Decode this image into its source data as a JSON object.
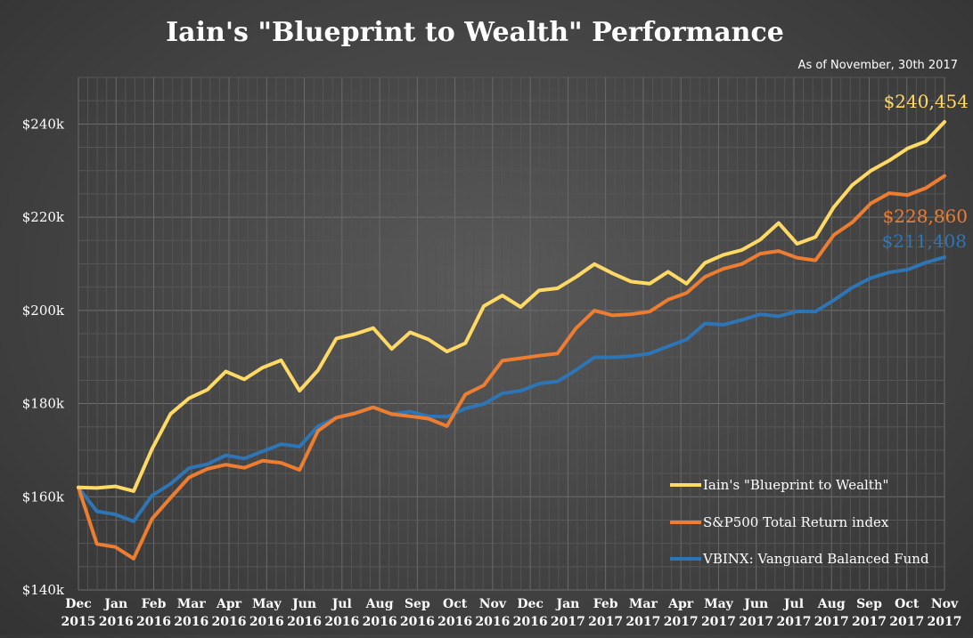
{
  "chart_data": {
    "type": "line",
    "title": "Iain's \"Blueprint to Wealth\" Performance",
    "subtitle": "As of November, 30th 2017",
    "xlabel": "",
    "ylabel": "",
    "ylim": [
      140000,
      250000
    ],
    "y_ticks": [
      140000,
      160000,
      180000,
      200000,
      220000,
      240000
    ],
    "y_tick_labels": [
      "$140k",
      "$160k",
      "$180k",
      "$200k",
      "$220k",
      "$240k"
    ],
    "x_tick_labels": [
      [
        "Dec",
        "2015"
      ],
      [
        "Jan",
        "2016"
      ],
      [
        "Feb",
        "2016"
      ],
      [
        "Mar",
        "2016"
      ],
      [
        "Apr",
        "2016"
      ],
      [
        "May",
        "2016"
      ],
      [
        "Jun",
        "2016"
      ],
      [
        "Jul",
        "2016"
      ],
      [
        "Aug",
        "2016"
      ],
      [
        "Sep",
        "2016"
      ],
      [
        "Oct",
        "2016"
      ],
      [
        "Nov",
        "2016"
      ],
      [
        "Dec",
        "2016"
      ],
      [
        "Jan",
        "2017"
      ],
      [
        "Feb",
        "2017"
      ],
      [
        "Mar",
        "2017"
      ],
      [
        "Apr",
        "2017"
      ],
      [
        "May",
        "2017"
      ],
      [
        "Jun",
        "2017"
      ],
      [
        "Jul",
        "2017"
      ],
      [
        "Aug",
        "2017"
      ],
      [
        "Sep",
        "2017"
      ],
      [
        "Oct",
        "2017"
      ],
      [
        "Nov",
        "2017"
      ]
    ],
    "grid": true,
    "legend_position": "bottom-right",
    "series": [
      {
        "name": "Iain's \"Blueprint to Wealth\"",
        "color": "#ffd966",
        "end_label": "$240,454",
        "points": [
          [
            "Dec 2015",
            162000
          ],
          [
            "mid Dec 2015",
            162000
          ],
          [
            "Jan 2016",
            162000
          ],
          [
            "mid Jan 2016",
            161500
          ],
          [
            "Feb 2016",
            170000
          ],
          [
            "mid Feb 2016",
            178000
          ],
          [
            "Mar 2016",
            181000
          ],
          [
            "mid Mar 2016",
            183000
          ],
          [
            "Apr 2016",
            187000
          ],
          [
            "mid Apr 2016",
            185000
          ],
          [
            "May 2016",
            188000
          ],
          [
            "mid May 2016",
            189000
          ],
          [
            "Jun 2016",
            183000
          ],
          [
            "mid Jun 2016",
            187000
          ],
          [
            "Jul 2016",
            194000
          ],
          [
            "mid Jul 2016",
            195000
          ],
          [
            "Aug 2016",
            196000
          ],
          [
            "mid Aug 2016",
            192000
          ],
          [
            "Sep 2016",
            195000
          ],
          [
            "mid Sep 2016",
            194000
          ],
          [
            "Oct 2016",
            191000
          ],
          [
            "mid Oct 2016",
            193000
          ],
          [
            "Nov 2016",
            201000
          ],
          [
            "mid Nov 2016",
            203000
          ],
          [
            "Dec 2016",
            201000
          ],
          [
            "mid Dec 2016",
            204000
          ],
          [
            "Jan 2017",
            205000
          ],
          [
            "mid Jan 2017",
            207000
          ],
          [
            "Feb 2017",
            210000
          ],
          [
            "mid Feb 2017",
            208000
          ],
          [
            "Mar 2017",
            206000
          ],
          [
            "mid Mar 2017",
            206000
          ],
          [
            "Apr 2017",
            208000
          ],
          [
            "mid Apr 2017",
            206000
          ],
          [
            "May 2017",
            210000
          ],
          [
            "mid May 2017",
            212000
          ],
          [
            "Jun 2017",
            213000
          ],
          [
            "mid Jun 2017",
            215000
          ],
          [
            "Jul 2017",
            219000
          ],
          [
            "mid Jul 2017",
            214000
          ],
          [
            "Aug 2017",
            216000
          ],
          [
            "mid Aug 2017",
            222000
          ],
          [
            "Sep 2017",
            227000
          ],
          [
            "mid Sep 2017",
            230000
          ],
          [
            "Oct 2017",
            232000
          ],
          [
            "mid Oct 2017",
            235000
          ],
          [
            "Nov 2017",
            236000
          ],
          [
            "end Nov 2017",
            240454
          ]
        ]
      },
      {
        "name": "S&P500 Total Return index",
        "color": "#ed7d31",
        "end_label": "$228,860",
        "points": [
          [
            "Dec 2015",
            162000
          ],
          [
            "mid Dec 2015",
            150000
          ],
          [
            "Jan 2016",
            149000
          ],
          [
            "mid Jan 2016",
            147000
          ],
          [
            "Feb 2016",
            155000
          ],
          [
            "mid Feb 2016",
            160000
          ],
          [
            "Mar 2016",
            164000
          ],
          [
            "mid Mar 2016",
            166000
          ],
          [
            "Apr 2016",
            167000
          ],
          [
            "mid Apr 2016",
            166000
          ],
          [
            "May 2016",
            168000
          ],
          [
            "mid May 2016",
            167000
          ],
          [
            "Jun 2016",
            166000
          ],
          [
            "mid Jun 2016",
            174000
          ],
          [
            "Jul 2016",
            177000
          ],
          [
            "mid Jul 2016",
            178000
          ],
          [
            "Aug 2016",
            179000
          ],
          [
            "mid Aug 2016",
            178000
          ],
          [
            "Sep 2016",
            177000
          ],
          [
            "mid Sep 2016",
            177000
          ],
          [
            "Oct 2016",
            175000
          ],
          [
            "mid Oct 2016",
            182000
          ],
          [
            "Nov 2016",
            184000
          ],
          [
            "mid Nov 2016",
            189000
          ],
          [
            "Dec 2016",
            190000
          ],
          [
            "mid Dec 2016",
            190000
          ],
          [
            "Jan 2017",
            191000
          ],
          [
            "mid Jan 2017",
            196000
          ],
          [
            "Feb 2017",
            200000
          ],
          [
            "mid Feb 2017",
            199000
          ],
          [
            "Mar 2017",
            199000
          ],
          [
            "mid Mar 2017",
            200000
          ],
          [
            "Apr 2017",
            202000
          ],
          [
            "mid Apr 2017",
            204000
          ],
          [
            "May 2017",
            207000
          ],
          [
            "mid May 2017",
            209000
          ],
          [
            "Jun 2017",
            210000
          ],
          [
            "mid Jun 2017",
            212000
          ],
          [
            "Jul 2017",
            213000
          ],
          [
            "mid Jul 2017",
            211000
          ],
          [
            "Aug 2017",
            211000
          ],
          [
            "mid Aug 2017",
            216000
          ],
          [
            "Sep 2017",
            219000
          ],
          [
            "mid Sep 2017",
            223000
          ],
          [
            "Oct 2017",
            225000
          ],
          [
            "mid Oct 2017",
            225000
          ],
          [
            "Nov 2017",
            226000
          ],
          [
            "end Nov 2017",
            228860
          ]
        ]
      },
      {
        "name": "VBINX: Vanguard Balanced Fund",
        "color": "#2e75b6",
        "end_label": "$211,408",
        "points": [
          [
            "Dec 2015",
            162000
          ],
          [
            "mid Dec 2015",
            157000
          ],
          [
            "Jan 2016",
            156000
          ],
          [
            "mid Jan 2016",
            155000
          ],
          [
            "Feb 2016",
            160000
          ],
          [
            "mid Feb 2016",
            163000
          ],
          [
            "Mar 2016",
            166000
          ],
          [
            "mid Mar 2016",
            167000
          ],
          [
            "Apr 2016",
            169000
          ],
          [
            "mid Apr 2016",
            168000
          ],
          [
            "May 2016",
            170000
          ],
          [
            "mid May 2016",
            171000
          ],
          [
            "Jun 2016",
            171000
          ],
          [
            "mid Jun 2016",
            175000
          ],
          [
            "Jul 2016",
            177000
          ],
          [
            "mid Jul 2016",
            178000
          ],
          [
            "Aug 2016",
            179000
          ],
          [
            "mid Aug 2016",
            178000
          ],
          [
            "Sep 2016",
            178000
          ],
          [
            "mid Sep 2016",
            177500
          ],
          [
            "Oct 2016",
            177000
          ],
          [
            "mid Oct 2016",
            179000
          ],
          [
            "Nov 2016",
            180000
          ],
          [
            "mid Nov 2016",
            182000
          ],
          [
            "Dec 2016",
            183000
          ],
          [
            "mid Dec 2016",
            184000
          ],
          [
            "Jan 2017",
            185000
          ],
          [
            "mid Jan 2017",
            187000
          ],
          [
            "Feb 2017",
            190000
          ],
          [
            "mid Feb 2017",
            190000
          ],
          [
            "Mar 2017",
            190000
          ],
          [
            "mid Mar 2017",
            191000
          ],
          [
            "Apr 2017",
            192000
          ],
          [
            "mid Apr 2017",
            194000
          ],
          [
            "May 2017",
            197000
          ],
          [
            "mid May 2017",
            197000
          ],
          [
            "Jun 2017",
            198000
          ],
          [
            "mid Jun 2017",
            199000
          ],
          [
            "Jul 2017",
            199000
          ],
          [
            "mid Jul 2017",
            199500
          ],
          [
            "Aug 2017",
            200000
          ],
          [
            "mid Aug 2017",
            202000
          ],
          [
            "Sep 2017",
            205000
          ],
          [
            "mid Sep 2017",
            207000
          ],
          [
            "Oct 2017",
            208000
          ],
          [
            "mid Oct 2017",
            209000
          ],
          [
            "Nov 2017",
            210000
          ],
          [
            "end Nov 2017",
            211408
          ]
        ]
      }
    ]
  }
}
